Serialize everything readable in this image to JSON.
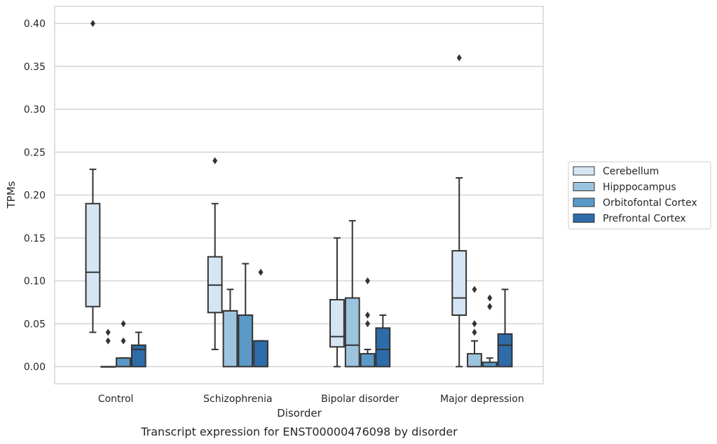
{
  "chart_data": {
    "type": "box",
    "xlabel": "Disorder",
    "ylabel": "TPMs",
    "caption": "Transcript expression for ENST00000476098 by disorder",
    "categories": [
      "Control",
      "Schizophrenia",
      "Bipolar disorder",
      "Major depression"
    ],
    "ylim": [
      -0.02,
      0.42
    ],
    "yticks": [
      0.0,
      0.05,
      0.1,
      0.15,
      0.2,
      0.25,
      0.3,
      0.35,
      0.4
    ],
    "ytick_labels": [
      "0.00",
      "0.05",
      "0.10",
      "0.15",
      "0.20",
      "0.25",
      "0.30",
      "0.35",
      "0.40"
    ],
    "grid": "horizontal",
    "legend_position": "right",
    "series": [
      {
        "name": "Cerebellum",
        "color": "#d6e5f3",
        "boxes": [
          {
            "min": 0.04,
            "q1": 0.07,
            "median": 0.11,
            "q3": 0.19,
            "max": 0.23,
            "outliers": [
              0.4
            ]
          },
          {
            "min": 0.02,
            "q1": 0.063,
            "median": 0.095,
            "q3": 0.128,
            "max": 0.19,
            "outliers": [
              0.24
            ]
          },
          {
            "min": 0.0,
            "q1": 0.023,
            "median": 0.035,
            "q3": 0.078,
            "max": 0.15,
            "outliers": []
          },
          {
            "min": 0.0,
            "q1": 0.06,
            "median": 0.08,
            "q3": 0.135,
            "max": 0.22,
            "outliers": [
              0.36
            ]
          }
        ]
      },
      {
        "name": "Hipppocampus",
        "color": "#9dc4de",
        "boxes": [
          {
            "min": 0.0,
            "q1": 0.0,
            "median": 0.0,
            "q3": 0.0,
            "max": 0.0,
            "outliers": [
              0.03,
              0.04
            ]
          },
          {
            "min": 0.0,
            "q1": 0.0,
            "median": 0.065,
            "q3": 0.065,
            "max": 0.09,
            "outliers": []
          },
          {
            "min": 0.0,
            "q1": 0.0,
            "median": 0.025,
            "q3": 0.08,
            "max": 0.17,
            "outliers": []
          },
          {
            "min": 0.0,
            "q1": 0.0,
            "median": 0.0,
            "q3": 0.015,
            "max": 0.03,
            "outliers": [
              0.04,
              0.05,
              0.09
            ]
          }
        ]
      },
      {
        "name": "Orbitofontal Cortex",
        "color": "#5b9ac7",
        "boxes": [
          {
            "min": 0.0,
            "q1": 0.0,
            "median": 0.0,
            "q3": 0.01,
            "max": 0.01,
            "outliers": [
              0.03,
              0.05
            ]
          },
          {
            "min": 0.0,
            "q1": 0.0,
            "median": 0.06,
            "q3": 0.06,
            "max": 0.12,
            "outliers": []
          },
          {
            "min": 0.0,
            "q1": 0.0,
            "median": 0.0,
            "q3": 0.015,
            "max": 0.02,
            "outliers": [
              0.05,
              0.06,
              0.1
            ]
          },
          {
            "min": 0.0,
            "q1": 0.0,
            "median": 0.0,
            "q3": 0.005,
            "max": 0.01,
            "outliers": [
              0.07,
              0.07,
              0.08
            ]
          }
        ]
      },
      {
        "name": "Prefrontal Cortex",
        "color": "#2d6ca9",
        "boxes": [
          {
            "min": 0.0,
            "q1": 0.0,
            "median": 0.02,
            "q3": 0.025,
            "max": 0.04,
            "outliers": []
          },
          {
            "min": 0.0,
            "q1": 0.0,
            "median": 0.0,
            "q3": 0.03,
            "max": 0.03,
            "outliers": [
              0.11
            ]
          },
          {
            "min": 0.0,
            "q1": 0.0,
            "median": 0.02,
            "q3": 0.045,
            "max": 0.06,
            "outliers": []
          },
          {
            "min": 0.0,
            "q1": 0.0,
            "median": 0.025,
            "q3": 0.038,
            "max": 0.09,
            "outliers": []
          }
        ]
      }
    ]
  }
}
